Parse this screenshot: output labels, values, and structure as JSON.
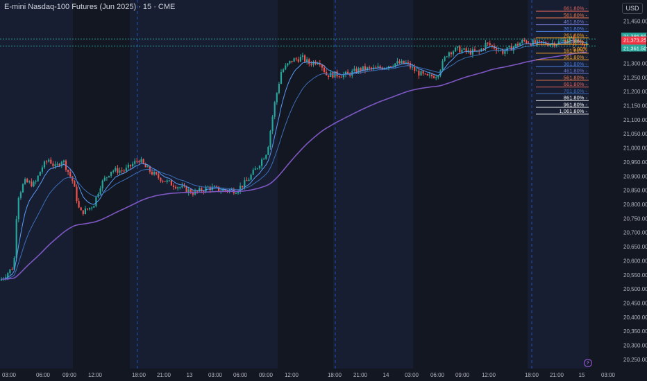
{
  "header": {
    "title": "E-mini Nasdaq-100 Futures (Jun 2025) · 15 · CME",
    "currency": "USD"
  },
  "colors": {
    "background": "#131722",
    "session_shade": "#1b2440",
    "up_candle": "#26a69a",
    "down_candle": "#ef5350",
    "ma_fast": "#5b9cf6",
    "ma_mid": "#3c6fb8",
    "ma_slow": "#7e57c2",
    "session_line": "#2962ff",
    "price_up_label": "#26a69a",
    "price_down_label": "#f23645",
    "axis_text": "#b2b5be"
  },
  "y_axis": {
    "labels": [
      "21,450.00",
      "21,400.00",
      "21,350.00",
      "21,300.00",
      "21,250.00",
      "21,200.00",
      "21,150.00",
      "21,100.00",
      "21,050.00",
      "21,000.00",
      "20,950.00",
      "20,900.00",
      "20,850.00",
      "20,800.00",
      "20,750.00",
      "20,700.00",
      "20,650.00",
      "20,600.00",
      "20,550.00",
      "20,500.00",
      "20,450.00",
      "20,400.00",
      "20,350.00",
      "20,300.00",
      "20,250.00"
    ],
    "range": [
      20235,
      21500
    ]
  },
  "x_axis": {
    "labels": [
      "03:00",
      "06:00",
      "09:00",
      "12:00",
      "18:00",
      "21:00",
      "13",
      "03:00",
      "06:00",
      "09:00",
      "12:00",
      "18:00",
      "21:00",
      "14",
      "03:00",
      "06:00",
      "09:00",
      "12:00",
      "18:00",
      "21:00",
      "15",
      "03:00"
    ]
  },
  "price_labels": [
    {
      "text": "21,386.50",
      "kind": "up"
    },
    {
      "text": "21,373.25",
      "kind": "down"
    },
    {
      "text": "09:42",
      "kind": "down"
    },
    {
      "text": "21,361.50",
      "kind": "up"
    }
  ],
  "fib_levels": [
    {
      "label": "661.80%",
      "color": "#e0655a",
      "value": 21485
    },
    {
      "label": "561.80%",
      "color": "#f07a4b",
      "value": 21461
    },
    {
      "label": "461.80%",
      "color": "#6b76c8",
      "value": 21437
    },
    {
      "label": "361.80%",
      "color": "#4b7fe0",
      "value": 21413
    },
    {
      "label": "261.80%",
      "color": "#ffa726",
      "value": 21390
    },
    {
      "label": "161.80%",
      "color": "#ffa726",
      "value": 21367
    },
    {
      "label": "161.80%",
      "color": "#ffa726",
      "value": 21336
    },
    {
      "label": "261.80%",
      "color": "#ffa726",
      "value": 21312
    },
    {
      "label": "361.80%",
      "color": "#4b7fe0",
      "value": 21288
    },
    {
      "label": "461.80%",
      "color": "#6b76c8",
      "value": 21264
    },
    {
      "label": "561.80%",
      "color": "#f07a4b",
      "value": 21240
    },
    {
      "label": "661.80%",
      "color": "#e0655a",
      "value": 21216
    },
    {
      "label": "761.80%",
      "color": "#3c6fb8",
      "value": 21192
    },
    {
      "label": "861.80%",
      "color": "#ffffff",
      "value": 21168
    },
    {
      "label": "961.80%",
      "color": "#ffffff",
      "value": 21144
    },
    {
      "label": "1,061.80%",
      "color": "#ffffff",
      "value": 21120
    }
  ],
  "fib_extra": {
    "label": "0.00%",
    "color": "#ffa726",
    "value": 21350
  },
  "chart_data": {
    "type": "candlestick",
    "title": "E-mini Nasdaq-100 Futures (Jun 2025) · 15 · CME",
    "ylim": [
      20235,
      21500
    ],
    "close_path_points": [
      [
        0,
        20530
      ],
      [
        20,
        20580
      ],
      [
        25,
        20820
      ],
      [
        35,
        20880
      ],
      [
        50,
        20870
      ],
      [
        60,
        20930
      ],
      [
        70,
        20960
      ],
      [
        80,
        20930
      ],
      [
        90,
        20960
      ],
      [
        105,
        20880
      ],
      [
        115,
        20770
      ],
      [
        125,
        20780
      ],
      [
        135,
        20800
      ],
      [
        145,
        20870
      ],
      [
        160,
        20920
      ],
      [
        180,
        20920
      ],
      [
        200,
        20960
      ],
      [
        210,
        20930
      ],
      [
        225,
        20900
      ],
      [
        240,
        20880
      ],
      [
        260,
        20860
      ],
      [
        280,
        20840
      ],
      [
        300,
        20860
      ],
      [
        320,
        20850
      ],
      [
        340,
        20850
      ],
      [
        355,
        20880
      ],
      [
        370,
        20930
      ],
      [
        385,
        20990
      ],
      [
        395,
        21150
      ],
      [
        405,
        21270
      ],
      [
        420,
        21310
      ],
      [
        435,
        21320
      ],
      [
        445,
        21300
      ],
      [
        460,
        21310
      ],
      [
        470,
        21260
      ],
      [
        480,
        21260
      ],
      [
        500,
        21260
      ],
      [
        520,
        21280
      ],
      [
        540,
        21280
      ],
      [
        555,
        21290
      ],
      [
        570,
        21300
      ],
      [
        585,
        21300
      ],
      [
        600,
        21270
      ],
      [
        615,
        21250
      ],
      [
        630,
        21260
      ],
      [
        645,
        21340
      ],
      [
        660,
        21350
      ],
      [
        675,
        21340
      ],
      [
        690,
        21340
      ],
      [
        700,
        21370
      ],
      [
        710,
        21360
      ],
      [
        725,
        21340
      ],
      [
        740,
        21360
      ],
      [
        755,
        21380
      ],
      [
        770,
        21370
      ],
      [
        790,
        21370
      ],
      [
        805,
        21375
      ],
      [
        820,
        21385
      ],
      [
        835,
        21375
      ],
      [
        848,
        21373
      ]
    ],
    "moving_averages": [
      {
        "name": "MA fast",
        "color": "#5b9cf6"
      },
      {
        "name": "MA mid",
        "color": "#3c6fb8"
      },
      {
        "name": "MA slow",
        "color": "#7e57c2"
      }
    ],
    "last_price": 21373.25,
    "session_marks": [
      "18:00",
      "18:00",
      "18:00"
    ]
  }
}
